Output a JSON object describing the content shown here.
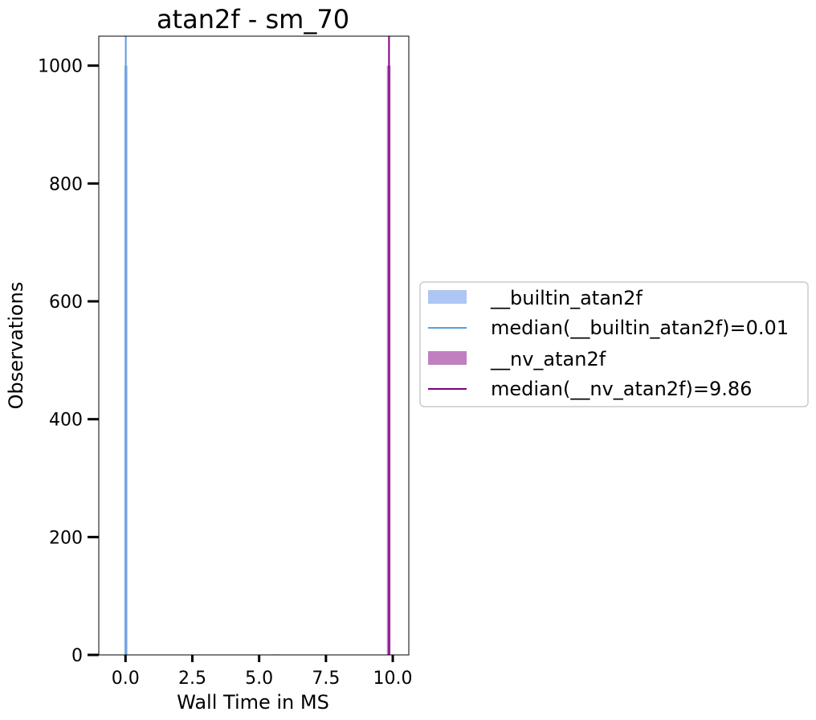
{
  "chart_data": {
    "type": "bar",
    "title": "atan2f - sm_70",
    "xlabel": "Wall Time in MS",
    "ylabel": "Observations",
    "xlim": [
      -1.0,
      10.6
    ],
    "ylim": [
      0,
      1050
    ],
    "xticks": [
      0.0,
      2.5,
      5.0,
      7.5,
      10.0
    ],
    "xtick_labels": [
      "0.0",
      "2.5",
      "5.0",
      "7.5",
      "10.0"
    ],
    "yticks": [
      0,
      200,
      400,
      600,
      800,
      1000
    ],
    "ytick_labels": [
      "0",
      "200",
      "400",
      "600",
      "800",
      "1000"
    ],
    "grid": false,
    "legend_position": "outside-right",
    "series": [
      {
        "name": "__builtin_atan2f",
        "color": "#aec6f3",
        "bins": [
          {
            "x0": -0.05,
            "x1": 0.08,
            "count": 1000
          },
          {
            "x0": 5.5,
            "x1": 5.8,
            "count": 1
          }
        ],
        "median": 0.01,
        "median_label": "median(__builtin_atan2f)=0.01",
        "median_color": "#5b9be0"
      },
      {
        "name": "__nv_atan2f",
        "color": "#c07fbf",
        "bins": [
          {
            "x0": 9.78,
            "x1": 9.92,
            "count": 1000
          }
        ],
        "median": 9.86,
        "median_label": "median(__nv_atan2f)=9.86",
        "median_color": "#800080"
      }
    ]
  }
}
